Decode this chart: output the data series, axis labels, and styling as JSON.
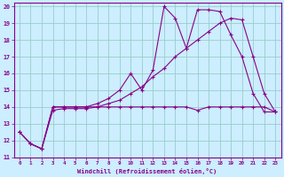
{
  "xlabel": "Windchill (Refroidissement éolien,°C)",
  "xlim": [
    -0.5,
    23.5
  ],
  "ylim": [
    11,
    20.2
  ],
  "yticks": [
    11,
    12,
    13,
    14,
    15,
    16,
    17,
    18,
    19,
    20
  ],
  "xticks": [
    0,
    1,
    2,
    3,
    4,
    5,
    6,
    7,
    8,
    9,
    10,
    11,
    12,
    13,
    14,
    15,
    16,
    17,
    18,
    19,
    20,
    21,
    22,
    23
  ],
  "background_color": "#cceeff",
  "grid_color": "#99cccc",
  "line_color": "#880088",
  "line1_x": [
    0,
    1,
    2,
    3,
    4,
    5,
    6,
    7,
    8,
    9,
    10,
    11,
    12,
    13,
    14,
    15,
    16,
    17,
    18,
    19,
    20,
    21,
    22,
    23
  ],
  "line1_y": [
    12.5,
    11.8,
    11.5,
    14.0,
    14.0,
    14.0,
    14.0,
    14.0,
    14.0,
    14.0,
    14.0,
    14.0,
    14.0,
    14.0,
    14.0,
    14.0,
    13.8,
    14.0,
    14.0,
    14.0,
    14.0,
    14.0,
    14.0,
    13.7
  ],
  "line2_x": [
    0,
    1,
    2,
    3,
    4,
    5,
    6,
    7,
    8,
    9,
    10,
    11,
    12,
    13,
    14,
    15,
    16,
    17,
    18,
    19,
    20,
    21,
    22,
    23
  ],
  "line2_y": [
    12.5,
    11.8,
    11.5,
    14.0,
    14.0,
    14.0,
    14.0,
    14.2,
    14.5,
    15.0,
    16.0,
    15.0,
    16.2,
    20.0,
    19.3,
    17.5,
    19.8,
    19.8,
    19.7,
    18.3,
    17.0,
    14.8,
    13.7,
    13.7
  ],
  "line3_x": [
    0,
    1,
    2,
    3,
    4,
    5,
    6,
    7,
    8,
    9,
    10,
    11,
    12,
    13,
    14,
    15,
    16,
    17,
    18,
    19,
    20,
    21,
    22,
    23
  ],
  "line3_y": [
    12.5,
    11.8,
    11.5,
    13.8,
    13.9,
    13.9,
    13.9,
    14.0,
    14.2,
    14.4,
    14.8,
    15.2,
    15.8,
    16.3,
    17.0,
    17.5,
    18.0,
    18.5,
    19.0,
    19.3,
    19.2,
    17.0,
    14.8,
    13.7
  ]
}
